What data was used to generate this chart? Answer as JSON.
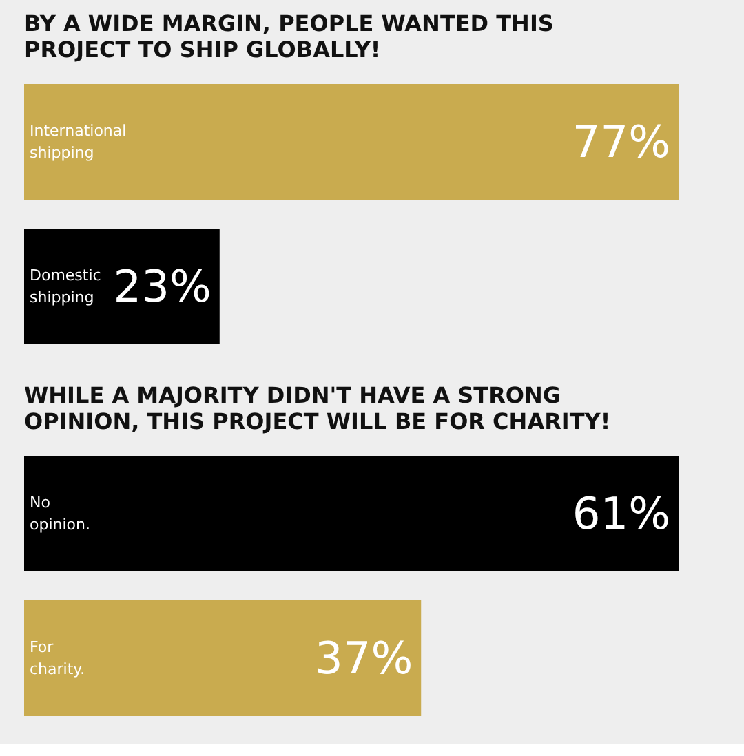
{
  "chart_data": [
    {
      "type": "bar",
      "orientation": "horizontal",
      "title": "BY A WIDE MARGIN, PEOPLE WANTED THIS PROJECT TO SHIP GLOBALLY!",
      "categories": [
        "International shipping",
        "Domestic shipping"
      ],
      "values": [
        77,
        23
      ],
      "colors": [
        "#c9ab4f",
        "#000000"
      ],
      "value_labels": [
        "77%",
        "23%"
      ]
    },
    {
      "type": "bar",
      "orientation": "horizontal",
      "title": "WHILE A MAJORITY DIDN'T HAVE A STRONG OPINION, THIS PROJECT WILL BE FOR CHARITY!",
      "categories": [
        "No opinion.",
        "For charity."
      ],
      "values": [
        61,
        37
      ],
      "colors": [
        "#000000",
        "#c9ab4f"
      ],
      "value_labels": [
        "61%",
        "37%"
      ]
    }
  ]
}
